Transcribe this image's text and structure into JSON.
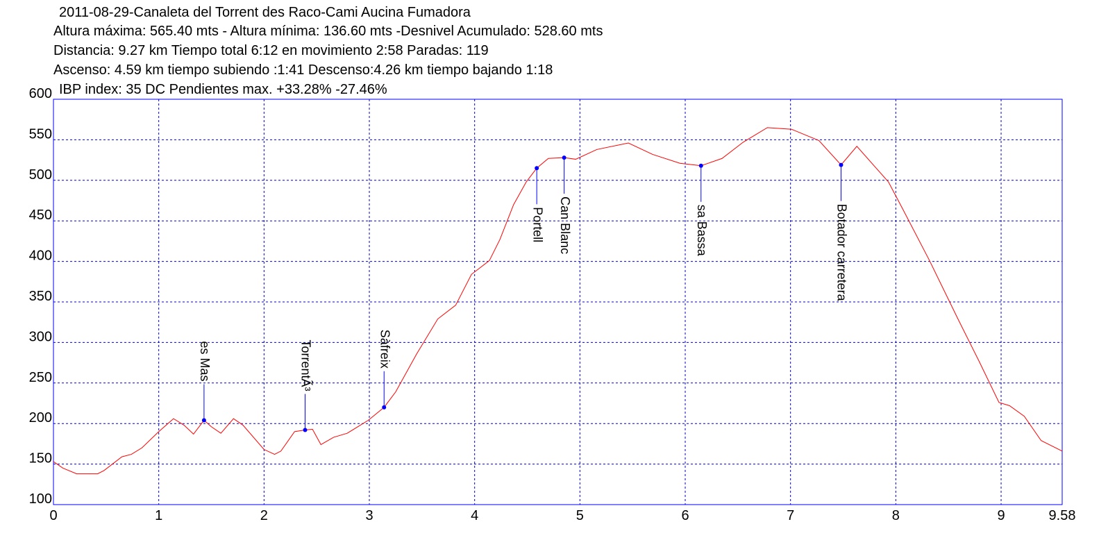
{
  "chart_data": {
    "type": "line",
    "title": "2011-08-29-Canaleta del Torrent des Raco-Cami Aucina Fumadora",
    "info_lines": [
      "Altura máxima: 565.40 mts - Altura mínima: 136.60 mts -Desnivel Acumulado: 528.60 mts",
      "Distancia: 9.27 km  Tiempo total 6:12  en movimiento 2:58 Paradas: 119",
      "Ascenso: 4.59 km  tiempo subiendo :1:41  Descenso:4.26 km tiempo bajando 1:18",
      "IBP index: 35 DC  Pendientes max. +33.28%  -27.46%"
    ],
    "series": [
      {
        "color": "#ff0000",
        "x": [
          0,
          0.09,
          0.22,
          0.42,
          0.48,
          0.65,
          0.74,
          0.84,
          1.0,
          1.14,
          1.24,
          1.33,
          1.43,
          1.5,
          1.59,
          1.71,
          1.8,
          2.0,
          2.1,
          2.16,
          2.29,
          2.39,
          2.46,
          2.54,
          2.66,
          2.79,
          2.99,
          3.14,
          3.25,
          3.45,
          3.65,
          3.82,
          3.97,
          4.14,
          4.24,
          4.37,
          4.49,
          4.59,
          4.7,
          4.85,
          4.96,
          5.16,
          5.46,
          5.69,
          5.95,
          6.15,
          6.35,
          6.55,
          6.78,
          7.01,
          7.27,
          7.48,
          7.63,
          7.8,
          7.93,
          8.06,
          8.32,
          8.59,
          8.79,
          8.98,
          9.08,
          9.22,
          9.38,
          9.58
        ],
        "values": [
          153,
          145,
          138,
          138,
          142,
          159,
          162,
          170,
          190,
          206,
          198,
          187,
          204,
          196,
          188,
          206,
          198,
          168,
          162,
          166,
          190,
          192,
          193,
          174,
          183,
          188,
          204,
          220,
          239,
          286,
          329,
          346,
          384,
          401,
          427,
          470,
          498,
          515,
          527,
          528,
          526,
          538,
          546,
          532,
          521,
          518,
          527,
          547,
          565,
          563,
          549,
          519,
          542,
          517,
          498,
          466,
          401,
          329,
          277,
          226,
          222,
          209,
          179,
          166
        ]
      }
    ],
    "waypoints": [
      {
        "label": "es Mas",
        "x": 1.43,
        "y": 204
      },
      {
        "label": "TorrentÃ³",
        "x": 2.39,
        "y": 192
      },
      {
        "label": "Sàfreix",
        "x": 3.14,
        "y": 220
      },
      {
        "label": "Portell",
        "x": 4.59,
        "y": 515
      },
      {
        "label": "Can Blanc",
        "x": 4.85,
        "y": 528
      },
      {
        "label": "sa Bassa",
        "x": 6.15,
        "y": 518
      },
      {
        "label": "Botador carretera",
        "x": 7.48,
        "y": 519
      }
    ],
    "waypoint_color": "#0000ff",
    "xlim": [
      0,
      9.58
    ],
    "xticks": [
      0,
      1,
      2,
      3,
      4,
      5,
      6,
      7,
      8,
      9,
      9.58
    ],
    "ylim": [
      100,
      600
    ],
    "yticks": [
      100,
      150,
      200,
      250,
      300,
      350,
      400,
      450,
      500,
      550,
      600
    ],
    "grid": true
  }
}
